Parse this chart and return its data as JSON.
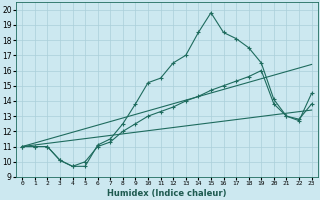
{
  "xlabel": "Humidex (Indice chaleur)",
  "ylabel": "",
  "xlim": [
    -0.5,
    23.5
  ],
  "ylim": [
    9,
    20.5
  ],
  "yticks": [
    9,
    10,
    11,
    12,
    13,
    14,
    15,
    16,
    17,
    18,
    19,
    20
  ],
  "xticks": [
    0,
    1,
    2,
    3,
    4,
    5,
    6,
    7,
    8,
    9,
    10,
    11,
    12,
    13,
    14,
    15,
    16,
    17,
    18,
    19,
    20,
    21,
    22,
    23
  ],
  "xtick_labels": [
    "0",
    "1",
    "2",
    "3",
    "4",
    "5",
    "6",
    "7",
    "8",
    "9",
    "10",
    "11",
    "12",
    "13",
    "14",
    "15",
    "16",
    "17",
    "18",
    "19",
    "20",
    "21",
    "22",
    "23"
  ],
  "bg_color": "#cce8f0",
  "grid_color": "#aacfda",
  "line_color": "#1e6b5e",
  "lines": [
    {
      "x": [
        0,
        1,
        2,
        3,
        4,
        5,
        6,
        7,
        8,
        9,
        10,
        11,
        12,
        13,
        14,
        15,
        16,
        17,
        18,
        19,
        20,
        21,
        22,
        23
      ],
      "y": [
        11,
        11,
        11,
        10.1,
        9.7,
        9.7,
        11.1,
        11.5,
        12.5,
        13.8,
        15.2,
        15.5,
        16.5,
        17.0,
        18.5,
        19.8,
        18.5,
        18.1,
        17.5,
        16.5,
        14.1,
        13.0,
        12.7,
        14.5
      ],
      "has_markers": true
    },
    {
      "x": [
        0,
        1,
        2,
        3,
        4,
        5,
        6,
        7,
        8,
        9,
        10,
        11,
        12,
        13,
        14,
        15,
        16,
        17,
        18,
        19,
        20,
        21,
        22,
        23
      ],
      "y": [
        11,
        11,
        11,
        10.1,
        9.7,
        10.0,
        11.0,
        11.3,
        12.0,
        12.5,
        13.0,
        13.3,
        13.6,
        14.0,
        14.3,
        14.7,
        15.0,
        15.3,
        15.6,
        16.0,
        13.8,
        13.0,
        12.8,
        13.8
      ],
      "has_markers": true
    },
    {
      "x": [
        0,
        23
      ],
      "y": [
        11,
        16.4
      ],
      "has_markers": false
    },
    {
      "x": [
        0,
        23
      ],
      "y": [
        11,
        13.4
      ],
      "has_markers": false
    }
  ]
}
